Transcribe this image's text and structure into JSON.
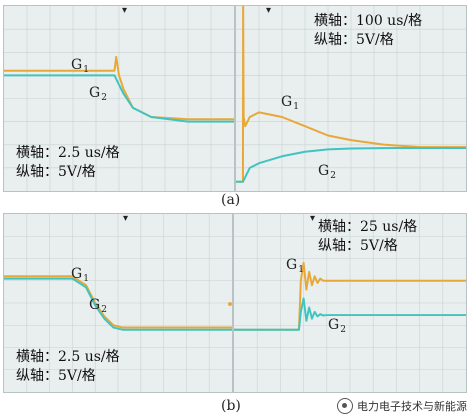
{
  "figure": {
    "captions": [
      "(a)",
      "(b)"
    ],
    "watermark": "电力电子技术与新能源"
  },
  "colors": {
    "g1": "#e8a838",
    "g2": "#40c4c0",
    "grid": "#c8d2d2",
    "panel_bg": "#e9eeee"
  },
  "chart_data": [
    {
      "type": "line",
      "panel": "a-left",
      "labels": {
        "g1": "G",
        "g1_sub": "1",
        "g2": "G",
        "g2_sub": "2"
      },
      "axis_text": [
        "横轴：2.5 us/格",
        "纵轴：5V/格"
      ],
      "xlim": [
        0,
        25
      ],
      "ylim": [
        -20,
        20
      ],
      "series": [
        {
          "key": "g1",
          "x": [
            0,
            12,
            12.2,
            12.5,
            13,
            14,
            16,
            20,
            25
          ],
          "y": [
            6,
            6,
            9,
            5,
            2,
            -2,
            -4,
            -4.5,
            -4.5
          ]
        },
        {
          "key": "g2",
          "x": [
            0,
            12,
            12.5,
            13,
            14,
            16,
            20,
            25
          ],
          "y": [
            5,
            5,
            3,
            1,
            -2,
            -4,
            -5,
            -5
          ]
        }
      ]
    },
    {
      "type": "line",
      "panel": "a-right",
      "labels": {
        "g1": "G",
        "g1_sub": "1",
        "g2": "G",
        "g2_sub": "2"
      },
      "axis_text": [
        "横轴：100 us/格",
        "纵轴：5V/格"
      ],
      "xlim": [
        0,
        1000
      ],
      "ylim": [
        -20,
        20
      ],
      "series": [
        {
          "key": "g1",
          "x": [
            0,
            30,
            31,
            33,
            40,
            60,
            100,
            200,
            300,
            400,
            500,
            650,
            800,
            1000
          ],
          "y": [
            -18,
            -18,
            20,
            -4,
            -6,
            -4,
            -3,
            -4,
            -6,
            -8,
            -9,
            -10,
            -10.5,
            -10.5
          ]
        },
        {
          "key": "g2",
          "x": [
            0,
            30,
            40,
            60,
            100,
            200,
            300,
            400,
            500,
            700,
            1000
          ],
          "y": [
            -18,
            -18,
            -17,
            -15,
            -14,
            -12.5,
            -11.5,
            -11,
            -10.8,
            -10.7,
            -10.7
          ]
        }
      ]
    },
    {
      "type": "line",
      "panel": "b-left",
      "labels": {
        "g1": "G",
        "g1_sub": "1",
        "g2": "G",
        "g2_sub": "2"
      },
      "axis_text": [
        "横轴：2.5 us/格",
        "纵轴：5V/格"
      ],
      "xlim": [
        0,
        25
      ],
      "ylim": [
        -20,
        20
      ],
      "series": [
        {
          "key": "g1",
          "x": [
            0,
            7.5,
            9,
            10,
            11,
            12,
            13,
            25
          ],
          "y": [
            6,
            6,
            4,
            0,
            -3,
            -5,
            -5.5,
            -5.5
          ]
        },
        {
          "key": "g2",
          "x": [
            0,
            7.5,
            9,
            10,
            11,
            12,
            13,
            25
          ],
          "y": [
            5.5,
            5.5,
            3.5,
            -0.5,
            -3.5,
            -5.5,
            -6,
            -6
          ]
        }
      ]
    },
    {
      "type": "line",
      "panel": "b-right",
      "labels": {
        "g1": "G",
        "g1_sub": "1",
        "g2": "G",
        "g2_sub": "2"
      },
      "axis_text": [
        "横轴：25 us/格",
        "纵轴：5V/格"
      ],
      "xlim": [
        0,
        250
      ],
      "ylim": [
        -20,
        20
      ],
      "series": [
        {
          "key": "g1",
          "x": [
            0,
            70,
            72,
            75,
            78,
            81,
            84,
            87,
            90,
            93,
            96,
            100,
            110,
            250
          ],
          "y": [
            -6,
            -6,
            5,
            9,
            3,
            7,
            4,
            6,
            4.5,
            5.5,
            5,
            5,
            5,
            5
          ]
        },
        {
          "key": "g2",
          "x": [
            0,
            70,
            72,
            75,
            78,
            81,
            84,
            87,
            90,
            93,
            96,
            100,
            110,
            250
          ],
          "y": [
            -6,
            -6,
            -2,
            1,
            -4,
            -1,
            -3.5,
            -2,
            -3,
            -2.5,
            -2.8,
            -2.7,
            -2.7,
            -2.7
          ]
        }
      ]
    }
  ]
}
